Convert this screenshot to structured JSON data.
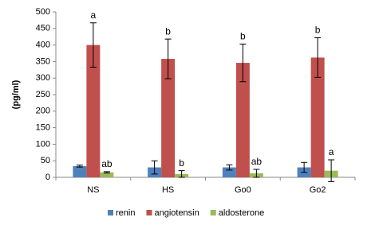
{
  "chart_data": {
    "type": "bar",
    "y_label": "(pg/ml)",
    "categories": [
      "NS",
      "HS",
      "Go0",
      "Go2"
    ],
    "series": [
      {
        "name": "renin",
        "color": "#4f81bd",
        "values": [
          34,
          30,
          30,
          30
        ],
        "errors": [
          3,
          20,
          8,
          15
        ]
      },
      {
        "name": "angiotensin",
        "color": "#c0504d",
        "values": [
          400,
          358,
          346,
          362
        ],
        "errors": [
          67,
          60,
          57,
          60
        ],
        "letters": [
          "a",
          "b",
          "b",
          "b"
        ]
      },
      {
        "name": "aldosterone",
        "color": "#9bbb59",
        "values": [
          15,
          10,
          12,
          20
        ],
        "errors": [
          2,
          10,
          12,
          33
        ],
        "letters": [
          "ab",
          "b",
          "ab",
          "a"
        ]
      }
    ],
    "ylim": [
      0,
      500
    ],
    "yticks": [
      0,
      50,
      100,
      150,
      200,
      250,
      300,
      350,
      400,
      450,
      500
    ],
    "legend": "bottom"
  }
}
